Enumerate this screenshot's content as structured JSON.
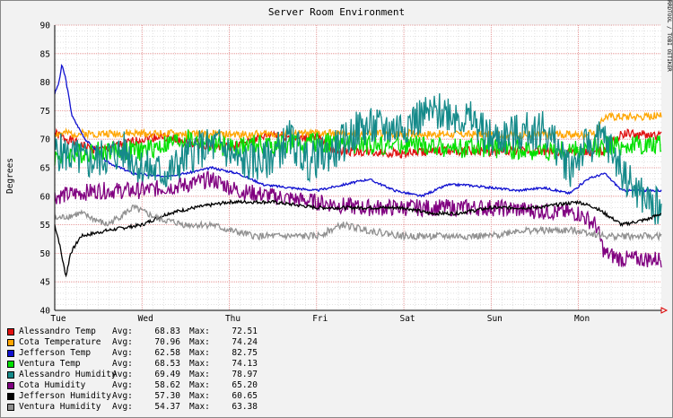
{
  "chart_data": {
    "type": "line",
    "title": "Server Room Environment",
    "ylabel": "Degrees",
    "watermark": "RRDTOOL / TOBI OETIKER",
    "ylim": [
      40,
      90
    ],
    "y_ticks": [
      40,
      45,
      50,
      55,
      60,
      65,
      70,
      75,
      80,
      85,
      90
    ],
    "x_ticks": [
      "Tue",
      "Wed",
      "Thu",
      "Fri",
      "Sat",
      "Sun",
      "Mon"
    ],
    "x_unit": "days since Tue 00:00",
    "xlim": [
      0,
      6.95
    ],
    "grid": true,
    "legend_position": "bottom-left",
    "avg_label": "Avg:",
    "max_label": "Max:",
    "series": [
      {
        "name": "Alessandro Temp",
        "color": "#e01010",
        "avg": "68.83",
        "max": "72.51",
        "points": [
          [
            0,
            71
          ],
          [
            0.3,
            69
          ],
          [
            0.5,
            68
          ],
          [
            1,
            70
          ],
          [
            1.2,
            70.5
          ],
          [
            1.5,
            69.5
          ],
          [
            2,
            68.5
          ],
          [
            2.3,
            70
          ],
          [
            2.5,
            71
          ],
          [
            2.8,
            70
          ],
          [
            3,
            70.5
          ],
          [
            3.2,
            68
          ],
          [
            3.5,
            67.8
          ],
          [
            4,
            67.5
          ],
          [
            4.5,
            68
          ],
          [
            5,
            67.8
          ],
          [
            5.5,
            68
          ],
          [
            6,
            67.5
          ],
          [
            6.3,
            68
          ],
          [
            6.5,
            71
          ],
          [
            6.95,
            70.5
          ]
        ],
        "noise": 0.8
      },
      {
        "name": "Cota Temperature",
        "color": "#ffa500",
        "avg": "70.96",
        "max": "74.24",
        "points": [
          [
            0,
            71
          ],
          [
            1,
            71
          ],
          [
            2,
            70.8
          ],
          [
            3,
            71
          ],
          [
            4,
            71
          ],
          [
            5,
            70.8
          ],
          [
            6,
            70.8
          ],
          [
            6.2,
            71
          ],
          [
            6.3,
            74
          ],
          [
            6.95,
            74
          ]
        ],
        "noise": 0.7
      },
      {
        "name": "Jefferson Temp",
        "color": "#1010d0",
        "avg": "62.58",
        "max": "82.75",
        "points": [
          [
            0,
            78
          ],
          [
            0.05,
            80
          ],
          [
            0.08,
            83
          ],
          [
            0.12,
            81
          ],
          [
            0.2,
            74
          ],
          [
            0.35,
            70
          ],
          [
            0.6,
            66
          ],
          [
            0.9,
            64
          ],
          [
            1.2,
            63.5
          ],
          [
            1.5,
            64
          ],
          [
            1.8,
            65
          ],
          [
            2.1,
            64
          ],
          [
            2.4,
            62
          ],
          [
            2.7,
            61.5
          ],
          [
            3,
            61
          ],
          [
            3.3,
            62
          ],
          [
            3.6,
            63
          ],
          [
            3.9,
            61
          ],
          [
            4.2,
            60
          ],
          [
            4.5,
            62
          ],
          [
            4.7,
            62
          ],
          [
            5,
            61.5
          ],
          [
            5.3,
            61
          ],
          [
            5.6,
            61.5
          ],
          [
            5.9,
            60.5
          ],
          [
            6.1,
            63
          ],
          [
            6.3,
            64
          ],
          [
            6.5,
            61
          ],
          [
            6.95,
            61
          ]
        ],
        "noise": 0.2
      },
      {
        "name": "Ventura Temp",
        "color": "#00e000",
        "avg": "68.53",
        "max": "74.13",
        "points": [
          [
            0,
            67
          ],
          [
            0.5,
            68
          ],
          [
            1,
            68
          ],
          [
            1.5,
            70
          ],
          [
            2,
            68.5
          ],
          [
            2.3,
            69
          ],
          [
            2.6,
            69
          ],
          [
            3,
            69.5
          ],
          [
            3.5,
            69
          ],
          [
            4,
            69
          ],
          [
            4.5,
            68.5
          ],
          [
            5,
            68.5
          ],
          [
            5.5,
            68
          ],
          [
            6,
            68
          ],
          [
            6.4,
            69
          ],
          [
            6.95,
            69
          ]
        ],
        "noise": 1.8
      },
      {
        "name": "Alessandro Humidity",
        "color": "#158a8a",
        "avg": "69.49",
        "max": "78.97",
        "points": [
          [
            0,
            68
          ],
          [
            0.4,
            66
          ],
          [
            0.8,
            68
          ],
          [
            1,
            65
          ],
          [
            1.3,
            64
          ],
          [
            1.6,
            68
          ],
          [
            1.9,
            69
          ],
          [
            2.1,
            66
          ],
          [
            2.4,
            66
          ],
          [
            2.7,
            70
          ],
          [
            2.9,
            66
          ],
          [
            3.2,
            68
          ],
          [
            3.5,
            72
          ],
          [
            3.9,
            72
          ],
          [
            4.2,
            74
          ],
          [
            4.5,
            75
          ],
          [
            4.8,
            73
          ],
          [
            5,
            70
          ],
          [
            5.3,
            71
          ],
          [
            5.6,
            72
          ],
          [
            5.9,
            65
          ],
          [
            6.1,
            69
          ],
          [
            6.3,
            70
          ],
          [
            6.6,
            62
          ],
          [
            6.8,
            59
          ],
          [
            6.95,
            58
          ]
        ],
        "noise": 3.5
      },
      {
        "name": "Cota Humidity",
        "color": "#800080",
        "avg": "58.62",
        "max": "65.20",
        "points": [
          [
            0,
            60
          ],
          [
            0.5,
            61
          ],
          [
            1,
            61
          ],
          [
            1.5,
            62
          ],
          [
            1.8,
            63
          ],
          [
            2.1,
            61
          ],
          [
            2.5,
            60
          ],
          [
            3,
            59
          ],
          [
            3.5,
            58
          ],
          [
            4,
            58
          ],
          [
            4.5,
            58
          ],
          [
            5,
            58
          ],
          [
            5.5,
            57.5
          ],
          [
            6,
            57
          ],
          [
            6.2,
            55
          ],
          [
            6.3,
            50
          ],
          [
            6.5,
            49
          ],
          [
            6.95,
            49
          ]
        ],
        "noise": 1.5
      },
      {
        "name": "Jefferson Humidity",
        "color": "#000000",
        "avg": "57.30",
        "max": "60.65",
        "points": [
          [
            0,
            55
          ],
          [
            0.05,
            52
          ],
          [
            0.1,
            48
          ],
          [
            0.13,
            46
          ],
          [
            0.18,
            50
          ],
          [
            0.3,
            53
          ],
          [
            0.6,
            54
          ],
          [
            1,
            55
          ],
          [
            1.3,
            57
          ],
          [
            1.6,
            58
          ],
          [
            2,
            59
          ],
          [
            2.5,
            59
          ],
          [
            3,
            58
          ],
          [
            3.5,
            58
          ],
          [
            4,
            58
          ],
          [
            4.3,
            57
          ],
          [
            4.6,
            57
          ],
          [
            5,
            58
          ],
          [
            5.5,
            58
          ],
          [
            6,
            59
          ],
          [
            6.2,
            58
          ],
          [
            6.5,
            55
          ],
          [
            6.8,
            56
          ],
          [
            6.95,
            57
          ]
        ],
        "noise": 0.3
      },
      {
        "name": "Ventura Humidity",
        "color": "#909090",
        "avg": "54.37",
        "max": "63.38",
        "points": [
          [
            0,
            56
          ],
          [
            0.3,
            57
          ],
          [
            0.6,
            55
          ],
          [
            0.9,
            58
          ],
          [
            1.2,
            56
          ],
          [
            1.5,
            55
          ],
          [
            1.8,
            55
          ],
          [
            2,
            54
          ],
          [
            2.3,
            53
          ],
          [
            2.6,
            53
          ],
          [
            3,
            53
          ],
          [
            3.3,
            55
          ],
          [
            3.6,
            54
          ],
          [
            4,
            53
          ],
          [
            4.3,
            53
          ],
          [
            4.6,
            53
          ],
          [
            5,
            53
          ],
          [
            5.3,
            54
          ],
          [
            5.6,
            54
          ],
          [
            6,
            54
          ],
          [
            6.3,
            53
          ],
          [
            6.5,
            53
          ],
          [
            6.95,
            53
          ]
        ],
        "noise": 0.6
      }
    ]
  }
}
